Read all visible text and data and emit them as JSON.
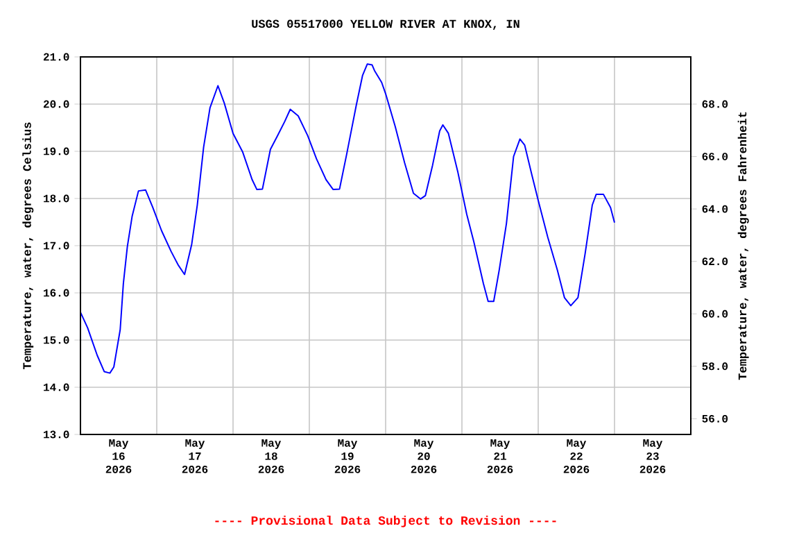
{
  "chart_data": {
    "type": "line",
    "title": "USGS 05517000 YELLOW RIVER AT KNOX, IN",
    "ylabel": "Temperature, water, degrees Celsius",
    "y2label": "Temperature, water, degrees Fahrenheit",
    "annotations": [
      "---- Provisional Data Subject to Revision ----"
    ],
    "x": [
      "2026-05-16T00:00",
      "2026-05-16T02:15",
      "2026-05-16T05:15",
      "2026-05-16T07:30",
      "2026-05-16T09:15",
      "2026-05-16T10:30",
      "2026-05-16T12:30",
      "2026-05-16T13:30",
      "2026-05-16T14:45",
      "2026-05-16T16:15",
      "2026-05-16T18:15",
      "2026-05-16T20:30",
      "2026-05-16T22:45",
      "2026-05-17T01:30",
      "2026-05-17T04:30",
      "2026-05-17T06:45",
      "2026-05-17T08:45",
      "2026-05-17T11:00",
      "2026-05-17T12:45",
      "2026-05-17T14:45",
      "2026-05-17T16:45",
      "2026-05-17T19:15",
      "2026-05-17T21:15",
      "2026-05-18T00:00",
      "2026-05-18T03:00",
      "2026-05-18T06:00",
      "2026-05-18T07:30",
      "2026-05-18T09:15",
      "2026-05-18T11:45",
      "2026-05-18T14:00",
      "2026-05-18T16:15",
      "2026-05-18T18:00",
      "2026-05-18T20:30",
      "2026-05-18T23:30",
      "2026-05-19T02:15",
      "2026-05-19T05:15",
      "2026-05-19T07:30",
      "2026-05-19T09:30",
      "2026-05-19T11:45",
      "2026-05-19T14:45",
      "2026-05-19T16:45",
      "2026-05-19T18:15",
      "2026-05-19T19:45",
      "2026-05-19T20:30",
      "2026-05-19T22:45",
      "2026-05-20T00:00",
      "2026-05-20T03:00",
      "2026-05-20T06:00",
      "2026-05-20T08:45",
      "2026-05-20T11:00",
      "2026-05-20T12:30",
      "2026-05-20T14:45",
      "2026-05-20T17:00",
      "2026-05-20T18:00",
      "2026-05-20T19:45",
      "2026-05-20T22:45",
      "2026-05-21T01:30",
      "2026-05-21T03:45",
      "2026-05-21T06:45",
      "2026-05-21T08:15",
      "2026-05-21T10:00",
      "2026-05-21T11:45",
      "2026-05-21T14:00",
      "2026-05-21T16:15",
      "2026-05-21T18:15",
      "2026-05-21T19:45",
      "2026-05-21T22:00",
      "2026-05-22T00:00",
      "2026-05-22T03:00",
      "2026-05-22T06:00",
      "2026-05-22T08:15",
      "2026-05-22T10:15",
      "2026-05-22T12:30",
      "2026-05-22T14:45",
      "2026-05-22T17:00",
      "2026-05-22T18:15",
      "2026-05-22T20:30",
      "2026-05-22T22:45",
      "2026-05-23T00:00"
    ],
    "series": [
      {
        "color": "#0000ff",
        "values": [
          15.59,
          15.26,
          14.68,
          14.33,
          14.3,
          14.43,
          15.22,
          16.2,
          16.98,
          17.62,
          18.16,
          18.18,
          17.81,
          17.32,
          16.88,
          16.59,
          16.39,
          17.03,
          17.86,
          19.09,
          19.92,
          20.39,
          20.02,
          19.38,
          18.99,
          18.4,
          18.19,
          18.2,
          19.04,
          19.33,
          19.63,
          19.89,
          19.75,
          19.33,
          18.84,
          18.4,
          18.19,
          18.2,
          18.94,
          19.97,
          20.61,
          20.85,
          20.83,
          20.71,
          20.46,
          20.22,
          19.53,
          18.75,
          18.11,
          17.99,
          18.06,
          18.7,
          19.43,
          19.56,
          19.38,
          18.55,
          17.67,
          17.08,
          16.2,
          15.82,
          15.82,
          16.49,
          17.47,
          18.89,
          19.26,
          19.13,
          18.5,
          17.96,
          17.18,
          16.49,
          15.9,
          15.73,
          15.9,
          16.83,
          17.86,
          18.09,
          18.09,
          17.81,
          17.49
        ]
      }
    ],
    "xlim": [
      "2026-05-16T00:00",
      "2026-05-24T00:00"
    ],
    "xticks": [
      {
        "value": "2026-05-16T12:00",
        "label": "May 16 2026"
      },
      {
        "value": "2026-05-17T12:00",
        "label": "May 17 2026"
      },
      {
        "value": "2026-05-18T12:00",
        "label": "May 18 2026"
      },
      {
        "value": "2026-05-19T12:00",
        "label": "May 19 2026"
      },
      {
        "value": "2026-05-20T12:00",
        "label": "May 20 2026"
      },
      {
        "value": "2026-05-21T12:00",
        "label": "May 21 2026"
      },
      {
        "value": "2026-05-22T12:00",
        "label": "May 22 2026"
      },
      {
        "value": "2026-05-23T12:00",
        "label": "May 23 2026"
      },
      {
        "value": "2026-05-17T00:00",
        "label": null
      },
      {
        "value": "2026-05-18T00:00",
        "label": null
      },
      {
        "value": "2026-05-19T00:00",
        "label": null
      },
      {
        "value": "2026-05-20T00:00",
        "label": null
      },
      {
        "value": "2026-05-21T00:00",
        "label": null
      },
      {
        "value": "2026-05-22T00:00",
        "label": null
      },
      {
        "value": "2026-05-23T00:00",
        "label": null
      }
    ],
    "ylim": [
      13,
      21
    ],
    "yticks": [
      {
        "value": 13,
        "label": "13.0"
      },
      {
        "value": 14,
        "label": "14.0"
      },
      {
        "value": 15,
        "label": "15.0"
      },
      {
        "value": 16,
        "label": "16.0"
      },
      {
        "value": 17,
        "label": "17.0"
      },
      {
        "value": 18,
        "label": "18.0"
      },
      {
        "value": 19,
        "label": "19.0"
      },
      {
        "value": 20,
        "label": "20.0"
      },
      {
        "value": 21,
        "label": "21.0"
      }
    ],
    "y2lim": [
      55.4,
      69.8
    ],
    "y2ticks": [
      {
        "value": 56,
        "label": "56.0"
      },
      {
        "value": 58,
        "label": "58.0"
      },
      {
        "value": 60,
        "label": "60.0"
      },
      {
        "value": 62,
        "label": "62.0"
      },
      {
        "value": 64,
        "label": "64.0"
      },
      {
        "value": 66,
        "label": "66.0"
      },
      {
        "value": 68,
        "label": "68.0"
      }
    ],
    "grid": true
  }
}
